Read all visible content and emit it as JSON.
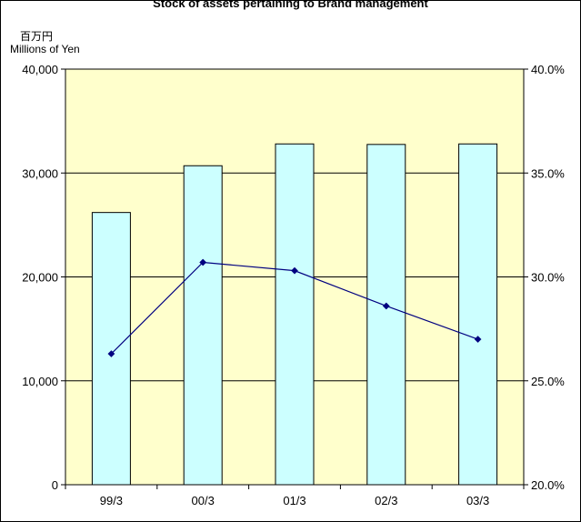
{
  "chart_data": {
    "type": "bar",
    "title": "Stock of assets pertaining to Brand management",
    "unit_label_jp": "百万円",
    "unit_label_en": "Millions of Yen",
    "categories": [
      "99/3",
      "00/3",
      "01/3",
      "02/3",
      "03/3"
    ],
    "series": [
      {
        "values": [
          26200,
          30700,
          32800,
          32750,
          32800
        ],
        "axis": "left",
        "type": "bar",
        "color": "#ccffff"
      },
      {
        "values": [
          26.3,
          30.7,
          30.3,
          28.6,
          27.0
        ],
        "axis": "right",
        "type": "line",
        "color": "#000080"
      }
    ],
    "y_left": {
      "range": [
        0,
        40000
      ],
      "ticks": [
        "0",
        "10,000",
        "20,000",
        "30,000",
        "40,000"
      ]
    },
    "y_right": {
      "range": [
        20,
        40
      ],
      "ticks": [
        "20.0%",
        "25.0%",
        "30.0%",
        "35.0%",
        "40.0%"
      ]
    },
    "grid": true,
    "plot_background": "#ffffcc"
  }
}
